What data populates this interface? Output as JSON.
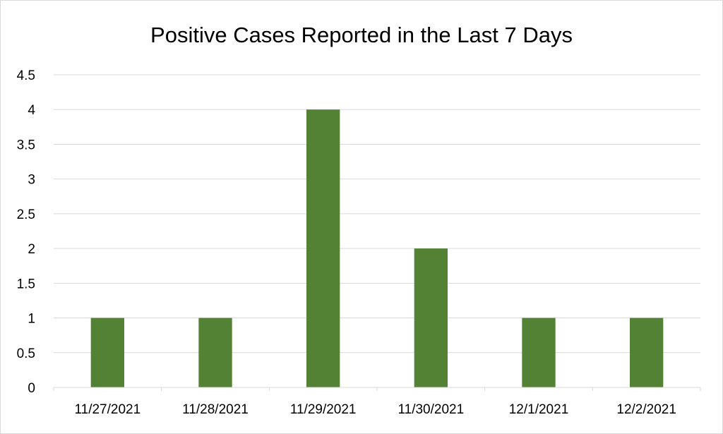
{
  "chart_data": {
    "type": "bar",
    "title": "Positive Cases Reported in the Last 7 Days",
    "xlabel": "",
    "ylabel": "",
    "categories": [
      "11/27/2021",
      "11/28/2021",
      "11/29/2021",
      "11/30/2021",
      "12/1/2021",
      "12/2/2021"
    ],
    "values": [
      1,
      1,
      4,
      2,
      1,
      1
    ],
    "ylim": [
      0,
      4.5
    ],
    "yticks": [
      "0",
      "0.5",
      "1",
      "1.5",
      "2",
      "2.5",
      "3",
      "3.5",
      "4",
      "4.5"
    ],
    "bar_color": "#548235",
    "grid": true,
    "legend": "none"
  }
}
